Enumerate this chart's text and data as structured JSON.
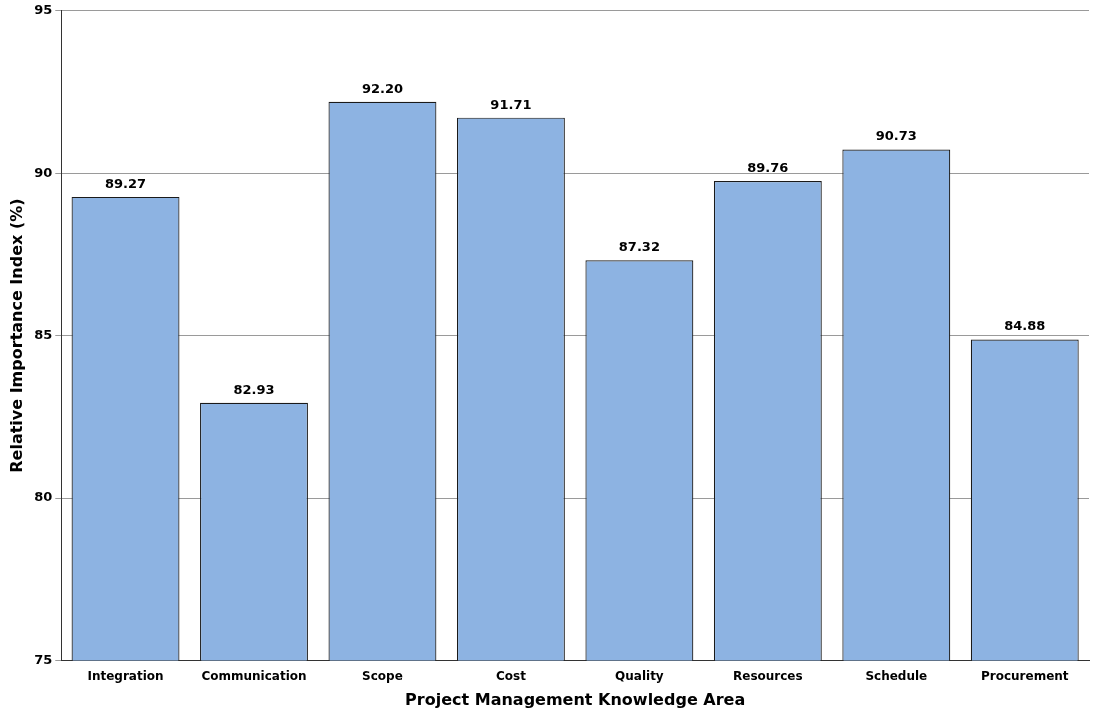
{
  "chart_data": {
    "type": "bar",
    "xlabel": "Project Management Knowledge Area",
    "ylabel": "Relative Importance Index (%)",
    "categories": [
      "Integration",
      "Communication",
      "Scope",
      "Cost",
      "Quality",
      "Resources",
      "Schedule",
      "Procurement"
    ],
    "values": [
      89.27,
      82.93,
      92.2,
      91.71,
      87.32,
      89.76,
      90.73,
      84.88
    ],
    "value_labels": [
      "89.27",
      "82.93",
      "92.20",
      "91.71",
      "87.32",
      "89.76",
      "90.73",
      "84.88"
    ],
    "color": "#8db3e2",
    "ylim": [
      75,
      95
    ],
    "yticks": [
      75,
      80,
      85,
      90,
      95
    ],
    "grid": "y",
    "legend": false
  }
}
